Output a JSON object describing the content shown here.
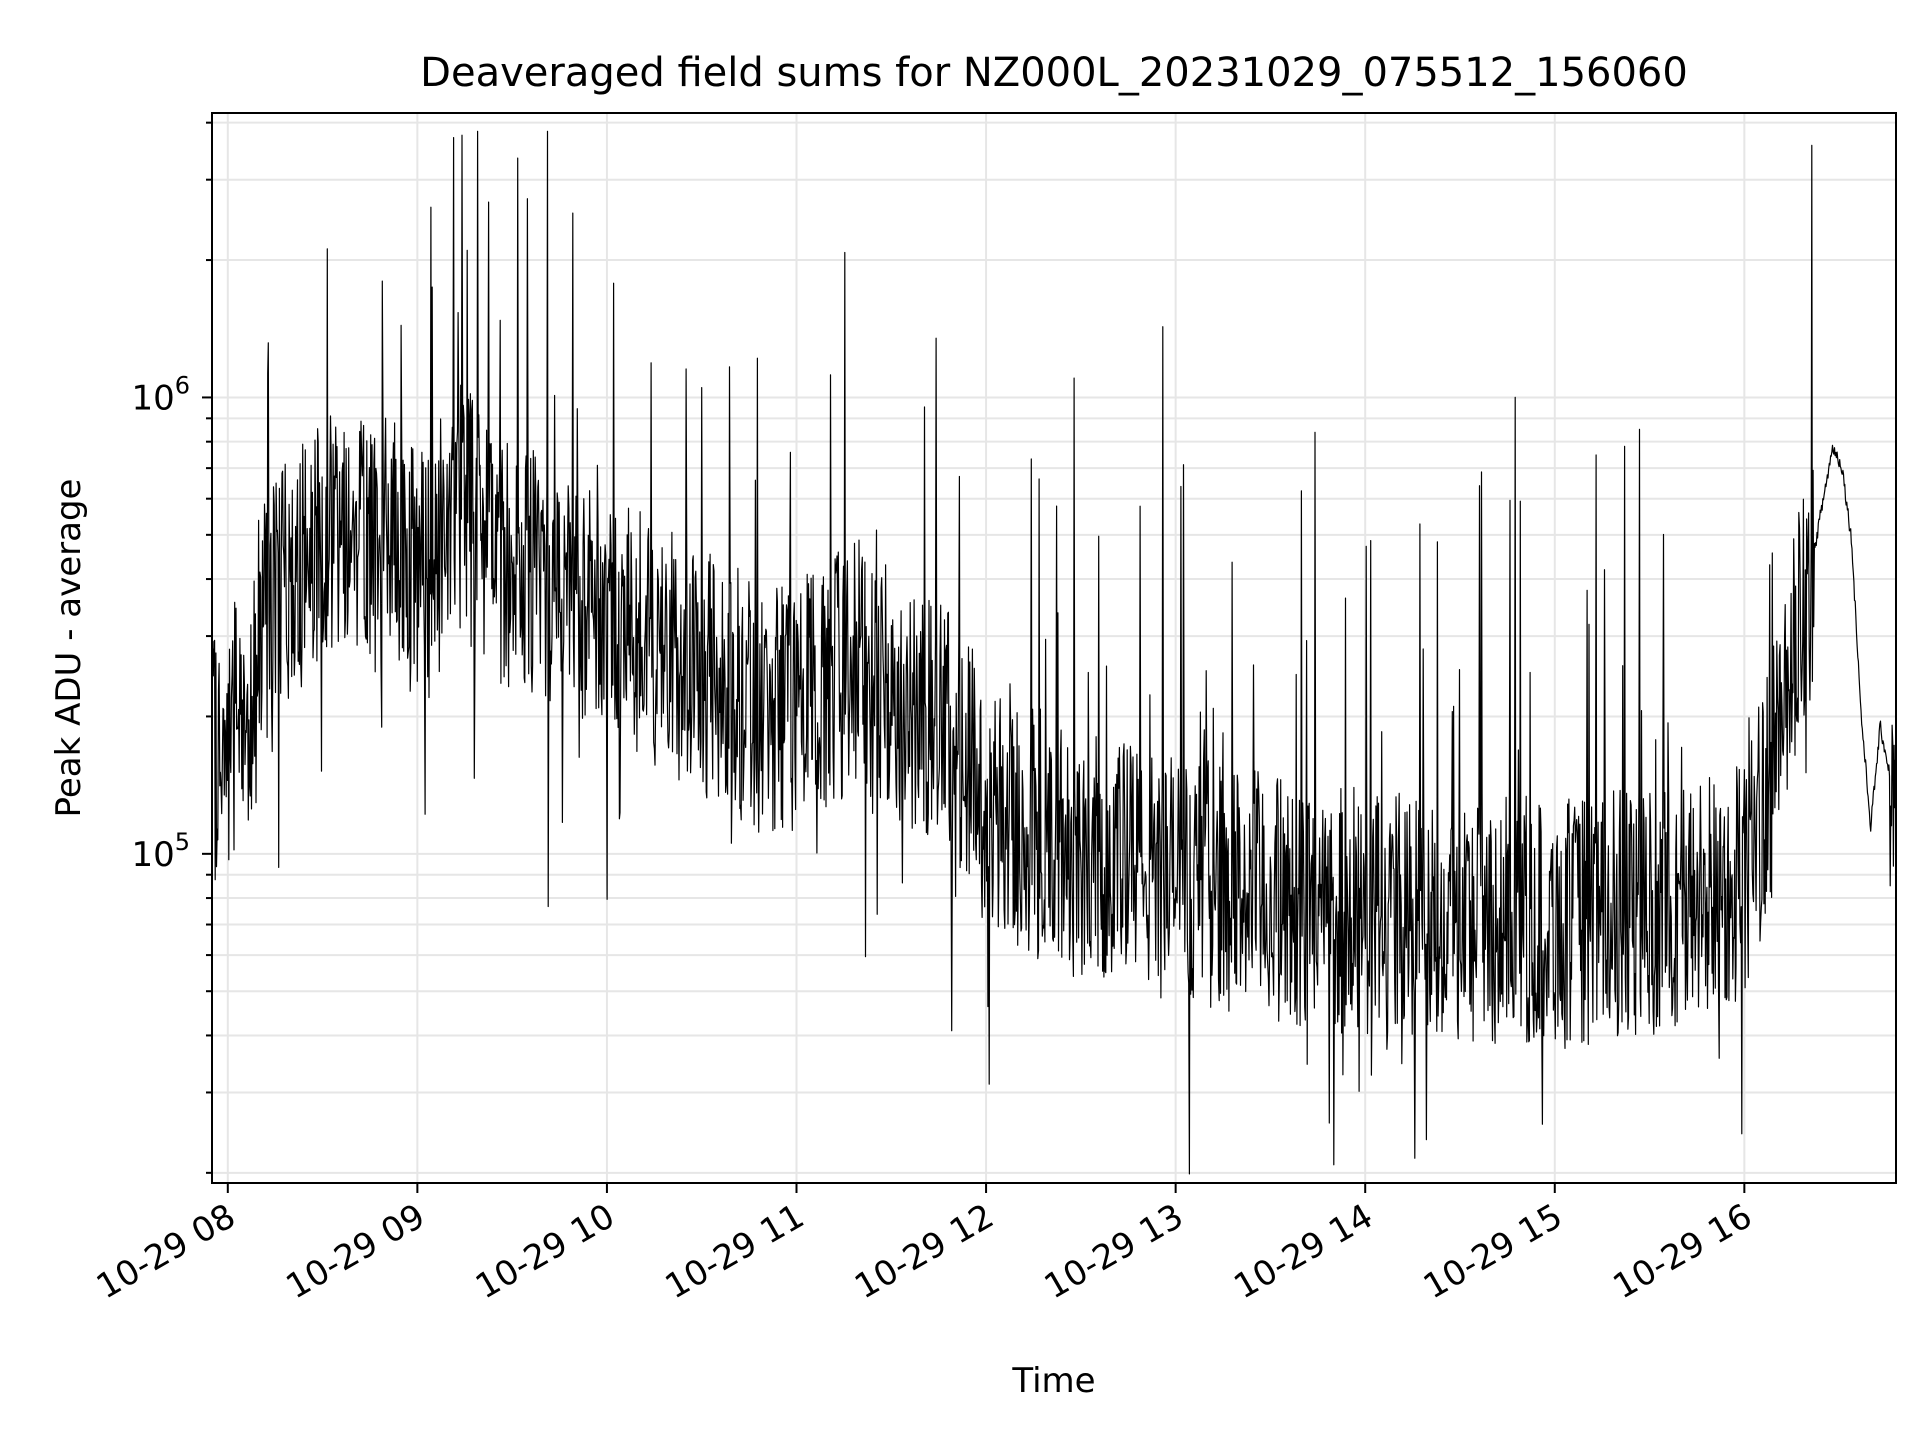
{
  "chart_data": {
    "type": "line",
    "title": "Deaveraged field sums for NZ000L_20231029_075512_156060",
    "xlabel": "Time",
    "ylabel": "Peak ADU - average",
    "yscale": "log",
    "ylim": [
      19000,
      4200000
    ],
    "xlim": [
      "2023-10-29 07:55",
      "2023-10-29 16:48"
    ],
    "x_ticks": [
      {
        "t": "2023-10-29 08:00",
        "label": "10-29 08"
      },
      {
        "t": "2023-10-29 09:00",
        "label": "10-29 09"
      },
      {
        "t": "2023-10-29 10:00",
        "label": "10-29 10"
      },
      {
        "t": "2023-10-29 11:00",
        "label": "10-29 11"
      },
      {
        "t": "2023-10-29 12:00",
        "label": "10-29 12"
      },
      {
        "t": "2023-10-29 13:00",
        "label": "10-29 13"
      },
      {
        "t": "2023-10-29 14:00",
        "label": "10-29 14"
      },
      {
        "t": "2023-10-29 15:00",
        "label": "10-29 15"
      },
      {
        "t": "2023-10-29 16:00",
        "label": "10-29 16"
      }
    ],
    "y_major_ticks": [
      {
        "value": 100000,
        "base": "10",
        "exp": "5"
      },
      {
        "value": 1000000,
        "base": "10",
        "exp": "6"
      }
    ],
    "grid": true,
    "legend": "none",
    "line_color": "#000000",
    "series": [
      {
        "x": [
          "2023-10-29 07:55",
          "2023-10-29 08:00",
          "2023-10-29 08:05",
          "2023-10-29 08:10",
          "2023-10-29 08:15",
          "2023-10-29 08:20",
          "2023-10-29 08:25",
          "2023-10-29 08:30",
          "2023-10-29 08:35",
          "2023-10-29 08:40",
          "2023-10-29 08:45",
          "2023-10-29 08:50",
          "2023-10-29 08:55",
          "2023-10-29 09:00",
          "2023-10-29 09:05",
          "2023-10-29 09:10",
          "2023-10-29 09:15",
          "2023-10-29 09:20",
          "2023-10-29 09:25",
          "2023-10-29 09:30",
          "2023-10-29 09:35",
          "2023-10-29 09:40",
          "2023-10-29 09:45",
          "2023-10-29 09:50",
          "2023-10-29 09:55",
          "2023-10-29 10:00",
          "2023-10-29 10:10",
          "2023-10-29 10:20",
          "2023-10-29 10:30",
          "2023-10-29 10:40",
          "2023-10-29 10:50",
          "2023-10-29 11:00",
          "2023-10-29 11:10",
          "2023-10-29 11:20",
          "2023-10-29 11:30",
          "2023-10-29 11:40",
          "2023-10-29 11:50",
          "2023-10-29 12:00",
          "2023-10-29 12:15",
          "2023-10-29 12:30",
          "2023-10-29 12:45",
          "2023-10-29 13:00",
          "2023-10-29 13:15",
          "2023-10-29 13:30",
          "2023-10-29 13:45",
          "2023-10-29 14:00",
          "2023-10-29 14:15",
          "2023-10-29 14:30",
          "2023-10-29 14:45",
          "2023-10-29 15:00",
          "2023-10-29 15:15",
          "2023-10-29 15:30",
          "2023-10-29 15:45",
          "2023-10-29 16:00",
          "2023-10-29 16:05",
          "2023-10-29 16:10",
          "2023-10-29 16:15",
          "2023-10-29 16:20",
          "2023-10-29 16:25",
          "2023-10-29 16:28",
          "2023-10-29 16:31",
          "2023-10-29 16:34",
          "2023-10-29 16:37",
          "2023-10-29 16:40",
          "2023-10-29 16:43",
          "2023-10-29 16:46",
          "2023-10-29 16:48"
        ],
        "y": [
          150000,
          200000,
          180000,
          300000,
          350000,
          400000,
          450000,
          500000,
          550000,
          520000,
          480000,
          500000,
          450000,
          400000,
          420000,
          550000,
          600000,
          500000,
          450000,
          430000,
          410000,
          400000,
          390000,
          380000,
          360000,
          330000,
          300000,
          270000,
          250000,
          230000,
          200000,
          210000,
          240000,
          260000,
          230000,
          200000,
          180000,
          130000,
          110000,
          100000,
          95000,
          90000,
          85000,
          80000,
          75000,
          75000,
          73000,
          72000,
          72000,
          70000,
          72000,
          75000,
          78000,
          90000,
          120000,
          160000,
          250000,
          380000,
          600000,
          780000,
          700000,
          480000,
          200000,
          115000,
          190000,
          150000,
          90000
        ]
      }
    ]
  }
}
